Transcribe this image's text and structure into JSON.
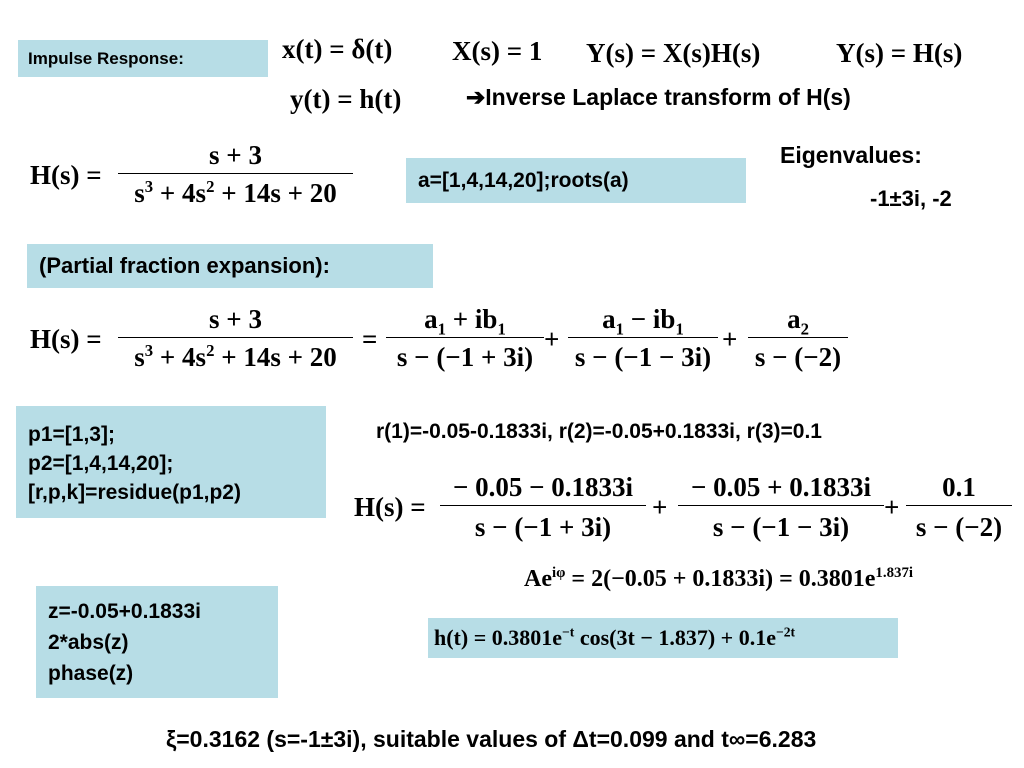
{
  "labels": {
    "impulse_response": "Impulse Response:",
    "inverse_laplace": "Inverse Laplace transform of H(s)",
    "eigenvalues_title": "Eigenvalues:",
    "eigenvalues_value": "-1±3i, -2",
    "roots_code": "a=[1,4,14,20];roots(a)",
    "pfe": "(Partial fraction expansion):",
    "residues": "r(1)=-0.05-0.1833i,  r(2)=-0.05+0.1833i, r(3)=0.1",
    "footer": "ξ=0.3162 (s=-1±3i), suitable values of Δt=0.099 and t∞=6.283"
  },
  "code_residue": [
    "p1=[1,3];",
    "p2=[1,4,14,20];",
    "[r,p,k]=residue(p1,p2)"
  ],
  "code_phase": [
    "z=-0.05+0.1833i",
    "2*abs(z)",
    "phase(z)"
  ],
  "eqs": {
    "xt": "x(t) = δ(t)",
    "Xs": "X(s) = 1",
    "Ys1": "Y(s) = X(s)H(s)",
    "Ys2": "Y(s) = H(s)",
    "yt": "y(t) = h(t)",
    "Hs": "H(s) =",
    "H_num": "s + 3",
    "pf1_num": "a1 + ib1",
    "pf1_den": "s − (−1 + 3i)",
    "pf2_num": "a1 − ib1",
    "pf2_den": "s − (−1 − 3i)",
    "pf3_num": "a2",
    "pf3_den": "s − (−2)",
    "r1_num": "− 0.05 − 0.1833i",
    "r2_num": "− 0.05 + 0.1833i",
    "r3_num": "0.1",
    "aeq_rhs": "= 2(−0.05 + 0.1833i)  = 0.3801e",
    "aeq_exp": "1.837i",
    "ht": "h(t) = 0.3801e",
    "ht_exp1": "−t",
    "ht_mid": " cos(3t − 1.837) + 0.1e",
    "ht_exp2": "−2t"
  },
  "colors": {
    "box": "#b7dde6"
  }
}
